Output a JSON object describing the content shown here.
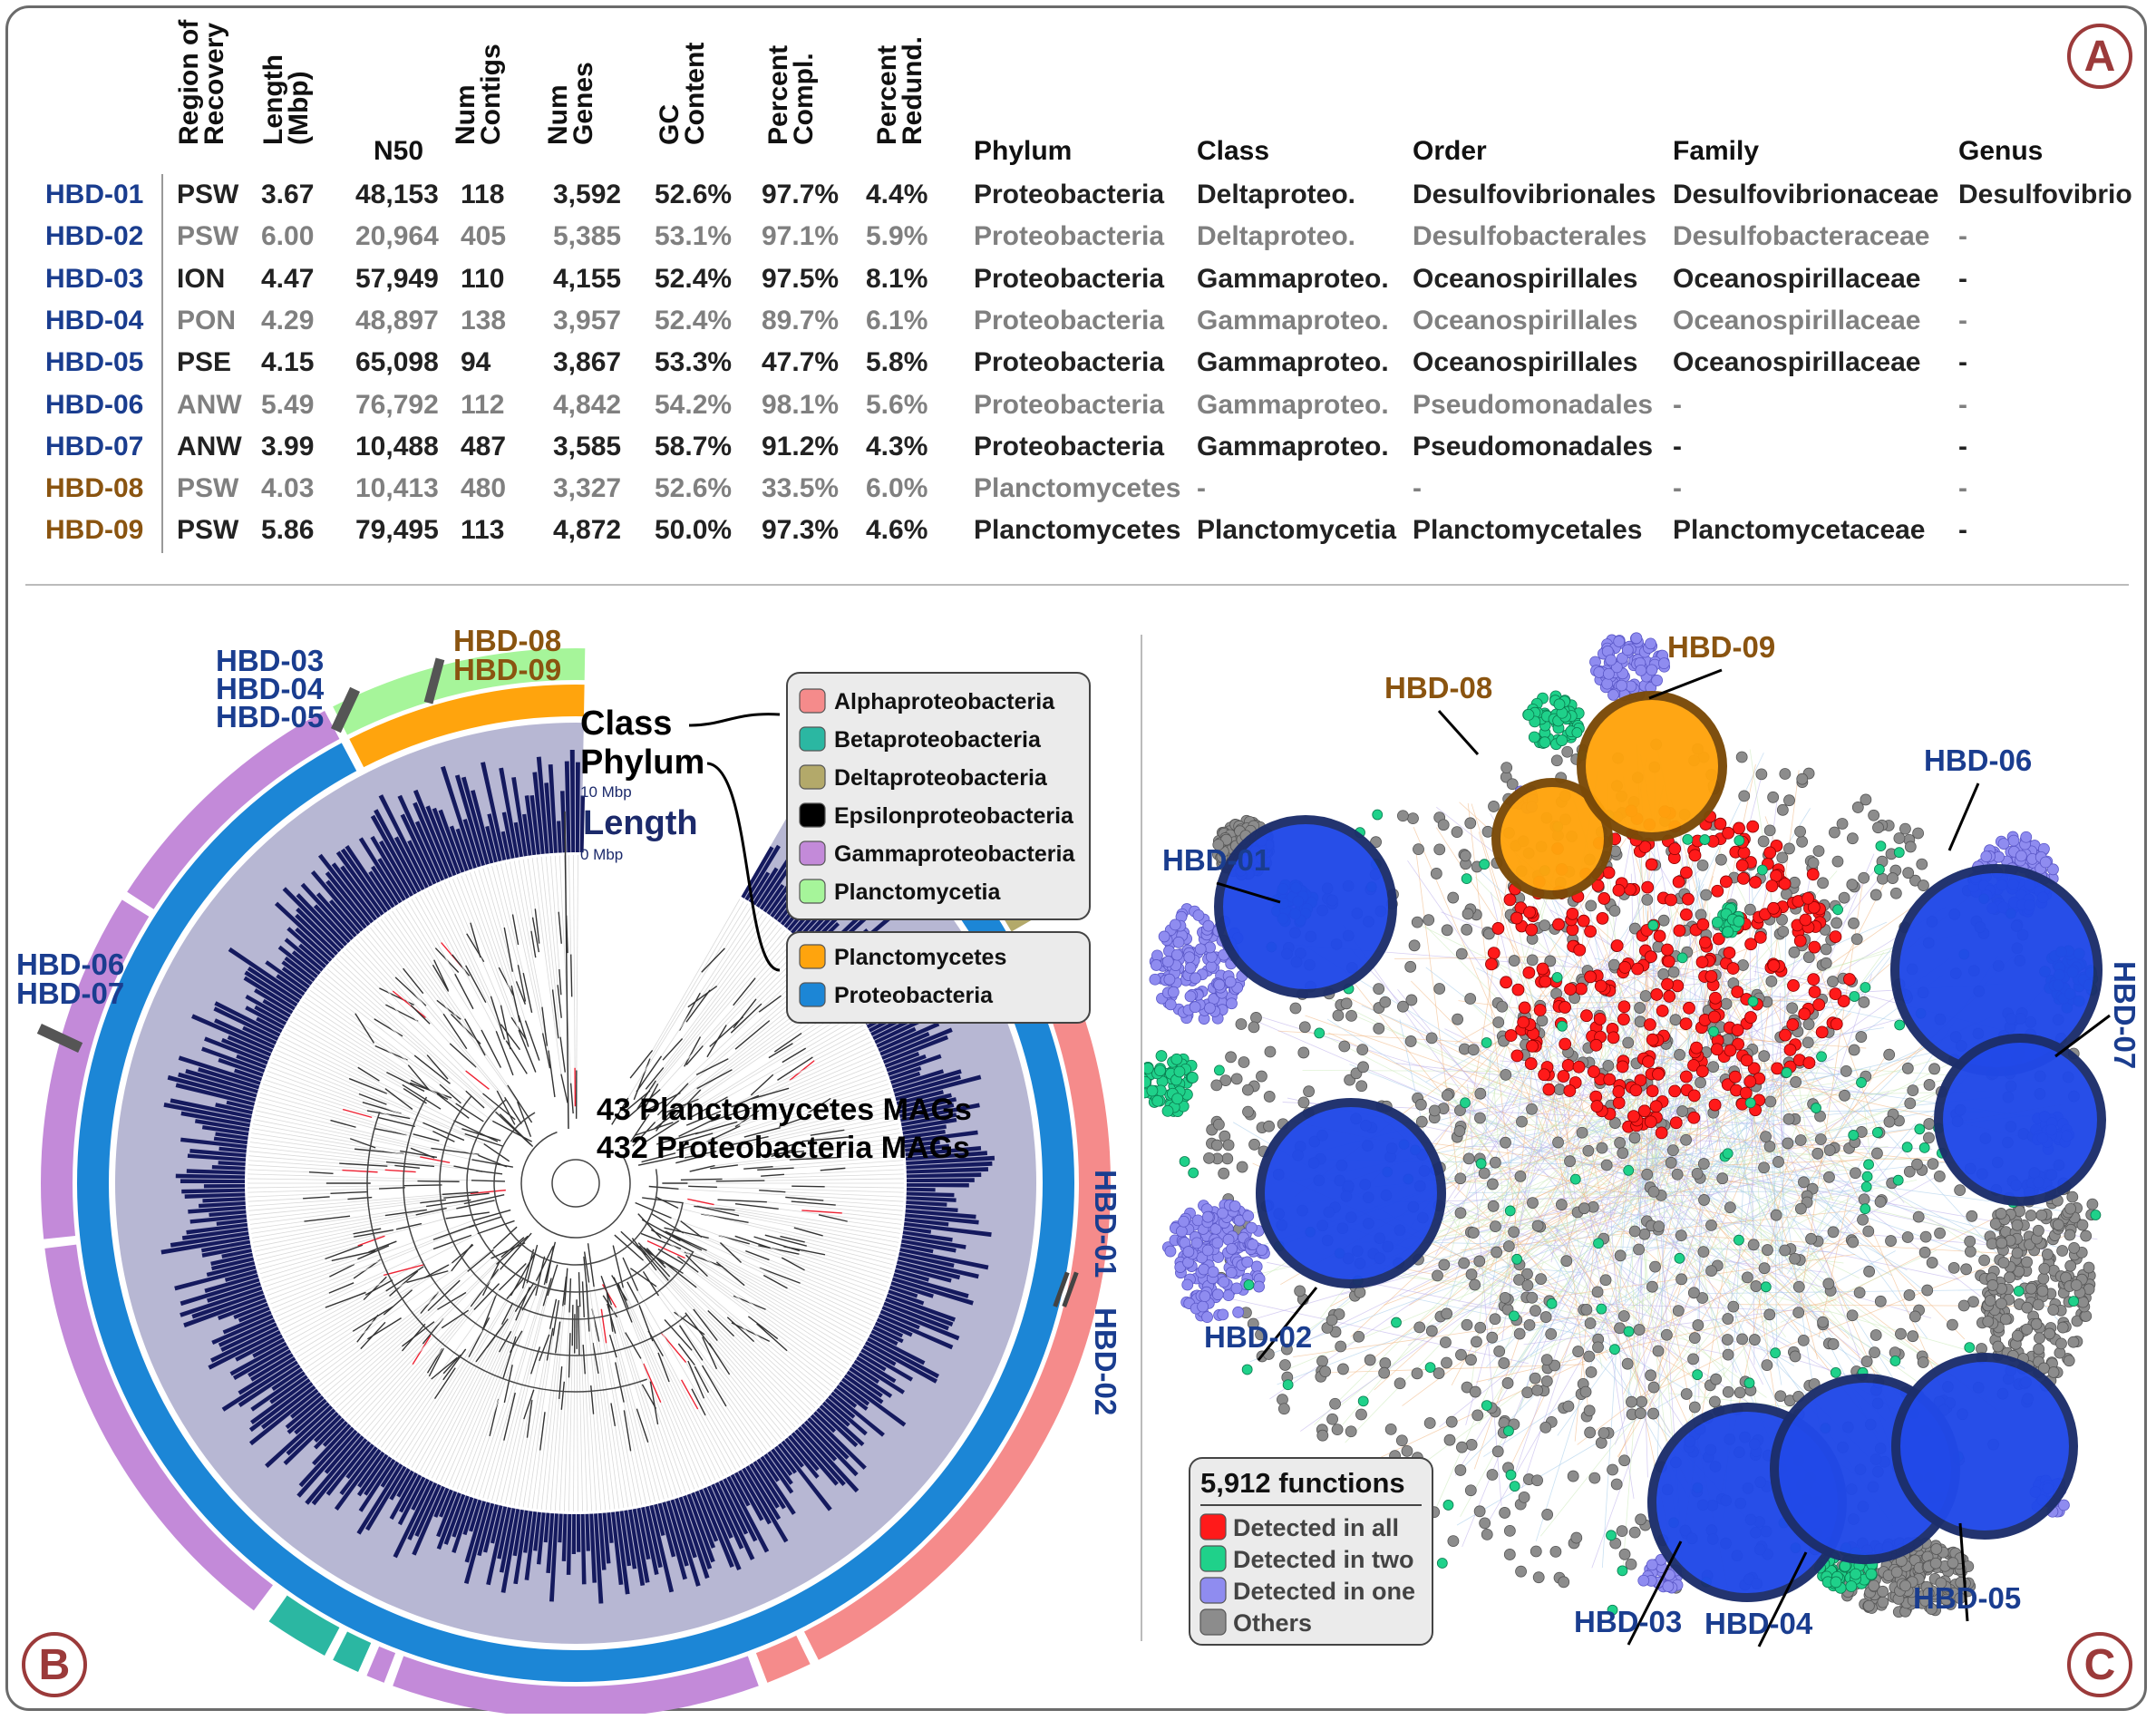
{
  "panels": {
    "a": "A",
    "b": "B",
    "c": "C"
  },
  "table": {
    "headers": {
      "region": [
        "Region of",
        "Recovery"
      ],
      "length": [
        "Length",
        "(Mbp)"
      ],
      "n50": "N50",
      "contigs": [
        "Num",
        "Contigs"
      ],
      "genes": [
        "Num",
        "Genes"
      ],
      "gc": [
        "GC",
        "Content"
      ],
      "compl": [
        "Percent",
        "Compl."
      ],
      "redund": [
        "Percent",
        "Redund."
      ],
      "phylum": "Phylum",
      "class": "Class",
      "order": "Order",
      "family": "Family",
      "genus": "Genus"
    },
    "rows": [
      {
        "id": "HBD-01",
        "color": "#1a3d8f",
        "shade": "dark",
        "cells": [
          "PSW",
          "3.67",
          "48,153",
          "118",
          "3,592",
          "52.6%",
          "97.7%",
          "4.4%",
          "Proteobacteria",
          "Deltaproteo.",
          "Desulfovibrionales",
          "Desulfovibrionaceae",
          "Desulfovibrio"
        ]
      },
      {
        "id": "HBD-02",
        "color": "#1a3d8f",
        "shade": "grey",
        "cells": [
          "PSW",
          "6.00",
          "20,964",
          "405",
          "5,385",
          "53.1%",
          "97.1%",
          "5.9%",
          "Proteobacteria",
          "Deltaproteo.",
          "Desulfobacterales",
          "Desulfobacteraceae",
          "-"
        ]
      },
      {
        "id": "HBD-03",
        "color": "#1a3d8f",
        "shade": "dark",
        "cells": [
          "ION",
          "4.47",
          "57,949",
          "110",
          "4,155",
          "52.4%",
          "97.5%",
          "8.1%",
          "Proteobacteria",
          "Gammaproteo.",
          "Oceanospirillales",
          "Oceanospirillaceae",
          "-"
        ]
      },
      {
        "id": "HBD-04",
        "color": "#1a3d8f",
        "shade": "grey",
        "cells": [
          "PON",
          "4.29",
          "48,897",
          "138",
          "3,957",
          "52.4%",
          "89.7%",
          "6.1%",
          "Proteobacteria",
          "Gammaproteo.",
          "Oceanospirillales",
          "Oceanospirillaceae",
          "-"
        ]
      },
      {
        "id": "HBD-05",
        "color": "#1a3d8f",
        "shade": "dark",
        "cells": [
          "PSE",
          "4.15",
          "65,098",
          "94",
          "3,867",
          "53.3%",
          "47.7%",
          "5.8%",
          "Proteobacteria",
          "Gammaproteo.",
          "Oceanospirillales",
          "Oceanospirillaceae",
          "-"
        ]
      },
      {
        "id": "HBD-06",
        "color": "#1a3d8f",
        "shade": "grey",
        "cells": [
          "ANW",
          "5.49",
          "76,792",
          "112",
          "4,842",
          "54.2%",
          "98.1%",
          "5.6%",
          "Proteobacteria",
          "Gammaproteo.",
          "Pseudomonadales",
          "-",
          "-"
        ]
      },
      {
        "id": "HBD-07",
        "color": "#1a3d8f",
        "shade": "dark",
        "cells": [
          "ANW",
          "3.99",
          "10,488",
          "487",
          "3,585",
          "58.7%",
          "91.2%",
          "4.3%",
          "Proteobacteria",
          "Gammaproteo.",
          "Pseudomonadales",
          "-",
          "-"
        ]
      },
      {
        "id": "HBD-08",
        "color": "#8a5410",
        "shade": "grey",
        "cells": [
          "PSW",
          "4.03",
          "10,413",
          "480",
          "3,327",
          "52.6%",
          "33.5%",
          "6.0%",
          "Planctomycetes",
          "-",
          "-",
          "-",
          "-"
        ]
      },
      {
        "id": "HBD-09",
        "color": "#8a5410",
        "shade": "dark",
        "cells": [
          "PSW",
          "5.86",
          "79,495",
          "113",
          "4,872",
          "50.0%",
          "97.3%",
          "4.6%",
          "Planctomycetes",
          "Planctomycetia",
          "Planctomycetales",
          "Planctomycetaceae",
          "-"
        ]
      }
    ]
  },
  "panel_b": {
    "labels": {
      "hbd0305": [
        "HBD-03",
        "HBD-04",
        "HBD-05"
      ],
      "hbd0809": [
        "HBD-08",
        "HBD-09"
      ],
      "hbd0607": [
        "HBD-06",
        "HBD-07"
      ],
      "hbd0102": [
        "HBD-01",
        "HBD-02"
      ]
    },
    "ring_labels": {
      "class": "Class",
      "phylum": "Phylum",
      "length": "Length",
      "max": "10 Mbp",
      "min": "0 Mbp"
    },
    "center_text": [
      "43 Planctomycetes MAGs",
      "432 Proteobacteria MAGs"
    ],
    "class_legend": [
      {
        "label": "Alphaproteobacteria",
        "color": "#f58b8b"
      },
      {
        "label": "Betaproteobacteria",
        "color": "#2bb7a2"
      },
      {
        "label": "Deltaproteobacteria",
        "color": "#b3a96a"
      },
      {
        "label": "Epsilonproteobacteria",
        "color": "#000000"
      },
      {
        "label": "Gammaproteobacteria",
        "color": "#c38ad9"
      },
      {
        "label": "Planctomycetia",
        "color": "#a6f59a"
      }
    ],
    "phylum_legend": [
      {
        "label": "Planctomycetes",
        "color": "#ffa40d"
      },
      {
        "label": "Proteobacteria",
        "color": "#1c86d6"
      }
    ]
  },
  "panel_c": {
    "node_labels": [
      "HBD-01",
      "HBD-02",
      "HBD-03",
      "HBD-04",
      "HBD-05",
      "HBD-06",
      "HBD-07",
      "HBD-08",
      "HBD-09"
    ],
    "legend_title": "5,912 functions",
    "legend": [
      {
        "label": "Detected in all",
        "color": "#ff1a1a"
      },
      {
        "label": "Detected in two",
        "color": "#1fd18a"
      },
      {
        "label": "Detected in one",
        "color": "#8f8cf0"
      },
      {
        "label": "Others",
        "color": "#8c8c8c"
      }
    ]
  }
}
